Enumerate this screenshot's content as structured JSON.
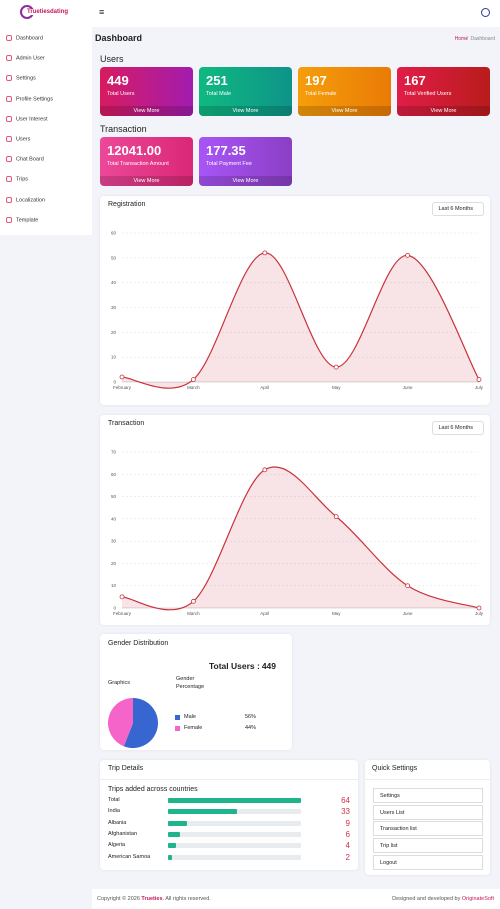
{
  "header": {
    "brand": "Truetiesdating"
  },
  "sidebar": {
    "items": [
      "Dashboard",
      "Admin User",
      "Settings",
      "Profile Settings",
      "User Interest",
      "Users",
      "Chat Board",
      "Trips",
      "Localization",
      "Template"
    ]
  },
  "page": {
    "title": "Dashboard",
    "breadcrumb": [
      "Home",
      "Dashboard"
    ]
  },
  "users": {
    "heading": "Users",
    "cards": [
      {
        "value": 449,
        "label": "Total Users",
        "link": "View More"
      },
      {
        "value": 251,
        "label": "Total Male",
        "link": "View More"
      },
      {
        "value": 197,
        "label": "Total Female",
        "link": "View More"
      },
      {
        "value": 167,
        "label": "Total Verified Users",
        "link": "View More"
      }
    ]
  },
  "transaction": {
    "heading": "Transaction",
    "cards": [
      {
        "value": "12041.00",
        "label": "Total Transaction Amount",
        "link": "View More"
      },
      {
        "value": "177.35",
        "label": "Total Payment Fee",
        "link": "View More"
      }
    ]
  },
  "registration_chart": {
    "type": "line",
    "title": "Registration",
    "filter": "Last 6 Months",
    "categories": [
      "February",
      "March",
      "April",
      "May",
      "June",
      "July"
    ],
    "values": [
      2,
      1,
      52,
      6,
      51,
      1
    ],
    "ylim": [
      0,
      60
    ],
    "yticks": [
      0,
      10,
      20,
      30,
      40,
      50,
      60
    ],
    "color": "#c8323c",
    "grid": true
  },
  "transaction_chart": {
    "type": "line",
    "title": "Transaction",
    "filter": "Last 6 Months",
    "categories": [
      "February",
      "March",
      "April",
      "May",
      "June",
      "July"
    ],
    "values": [
      5,
      3,
      62,
      41,
      10,
      0
    ],
    "ylim": [
      0,
      70
    ],
    "yticks": [
      0,
      10,
      20,
      30,
      40,
      50,
      60,
      70
    ],
    "color": "#c8323c",
    "grid": true
  },
  "gender": {
    "title": "Gender Distribution",
    "total_label": "Total Users :",
    "total": 449,
    "col_headers": [
      "Graphics",
      "Gender Percentage"
    ],
    "chart": {
      "type": "pie",
      "categories": [
        "Male",
        "Female"
      ],
      "values": [
        56,
        44
      ],
      "value_labels": [
        "56%",
        "44%"
      ],
      "colors": [
        "#3866d0",
        "#f564c9"
      ]
    }
  },
  "trips": {
    "title": "Trip Details",
    "subtitle": "Trips added across countries",
    "rows": [
      {
        "name": "Total",
        "count": 64
      },
      {
        "name": "India",
        "count": 33
      },
      {
        "name": "Albania",
        "count": 9
      },
      {
        "name": "Afghanistan",
        "count": 6
      },
      {
        "name": "Algeria",
        "count": 4
      },
      {
        "name": "American Samoa",
        "count": 2
      }
    ]
  },
  "quick_settings": {
    "title": "Quick Settings",
    "items": [
      "Settings",
      "Users List",
      "Transaction list",
      "Trip list",
      "Logout"
    ]
  },
  "footer": {
    "copyright": "Copyright © 2026",
    "brand": "Trueties",
    "rights": ". All rights reserved.",
    "credit": "Designed and developed by",
    "company": "OriginateSoft"
  }
}
